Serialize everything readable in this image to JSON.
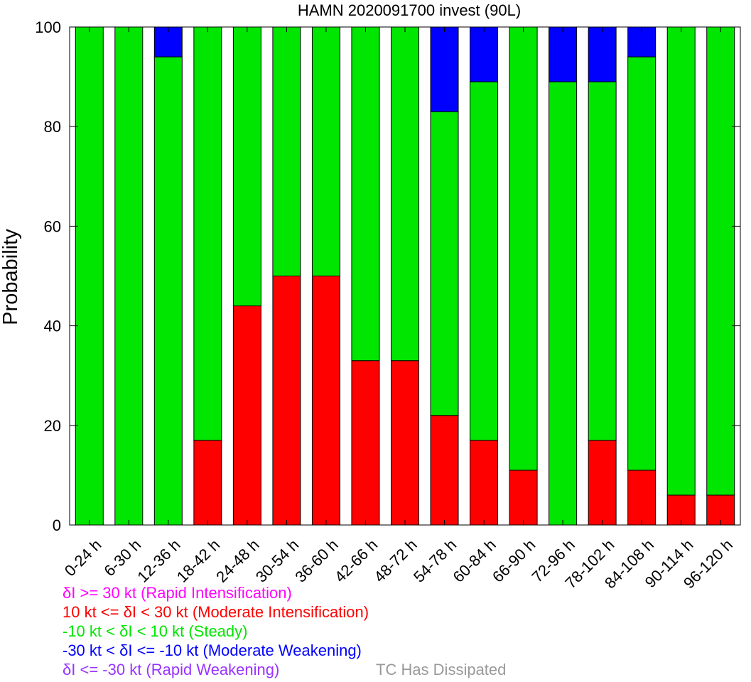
{
  "chart_data": {
    "type": "bar",
    "stacked": true,
    "title": "HAMN 2020091700 invest (90L)",
    "xlabel": "",
    "ylabel": "Probability",
    "ylim": [
      0,
      100
    ],
    "yticks": [
      0,
      20,
      40,
      60,
      80,
      100
    ],
    "grid": false,
    "categories": [
      "0-24 h",
      "6-30 h",
      "12-36 h",
      "18-42 h",
      "24-48 h",
      "30-54 h",
      "36-60 h",
      "42-66 h",
      "48-72 h",
      "54-78 h",
      "60-84 h",
      "66-90 h",
      "72-96 h",
      "78-102 h",
      "84-108 h",
      "90-114 h",
      "96-120 h"
    ],
    "series": [
      {
        "key": "ri",
        "color": "#ff00ff",
        "values": [
          0,
          0,
          0,
          0,
          0,
          0,
          0,
          0,
          0,
          0,
          0,
          0,
          0,
          0,
          0,
          0,
          0
        ]
      },
      {
        "key": "mi",
        "color": "#ff0000",
        "values": [
          0,
          0,
          0,
          17,
          44,
          50,
          50,
          33,
          33,
          22,
          17,
          11,
          0,
          17,
          11,
          6,
          6
        ]
      },
      {
        "key": "steady",
        "color": "#00e600",
        "values": [
          100,
          100,
          94,
          83,
          56,
          50,
          50,
          67,
          67,
          61,
          72,
          89,
          89,
          72,
          83,
          94,
          94
        ]
      },
      {
        "key": "mw",
        "color": "#0000ff",
        "values": [
          0,
          0,
          6,
          0,
          0,
          0,
          0,
          0,
          0,
          17,
          11,
          0,
          11,
          11,
          6,
          0,
          0
        ]
      },
      {
        "key": "rw",
        "color": "#9933ff",
        "values": [
          0,
          0,
          0,
          0,
          0,
          0,
          0,
          0,
          0,
          0,
          0,
          0,
          0,
          0,
          0,
          0,
          0
        ]
      }
    ]
  },
  "legend": [
    {
      "text": "δI >= 30 kt (Rapid Intensification)",
      "color": "#ff00ff"
    },
    {
      "text": "10 kt <= δI < 30 kt (Moderate Intensification)",
      "color": "#ff0000"
    },
    {
      "text": "-10 kt < δI < 10 kt (Steady)",
      "color": "#00e600"
    },
    {
      "text": "-30 kt < δI <= -10 kt (Moderate Weakening)",
      "color": "#0000ff"
    },
    {
      "text": "δI <= -30 kt (Rapid Weakening)",
      "color": "#9933ff"
    }
  ],
  "dissipated_note": {
    "text": "TC Has Dissipated",
    "color": "#999999"
  }
}
